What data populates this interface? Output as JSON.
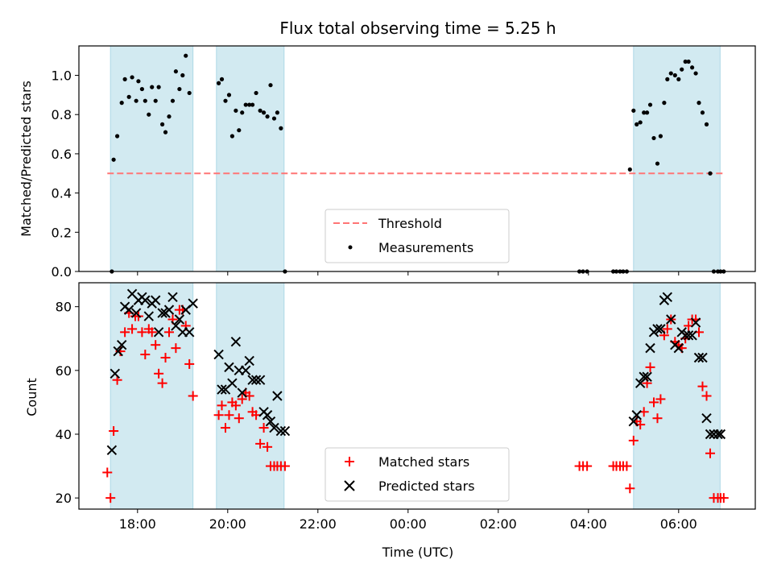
{
  "chart_data": [
    {
      "panel": "top",
      "type": "scatter",
      "title": "Flux total observing time = 5.25 h",
      "ylabel": "Matched/Predicted stars",
      "xlabel": "",
      "ylim": [
        0,
        1.15
      ],
      "yticks": [
        "0.0",
        "0.2",
        "0.4",
        "0.6",
        "0.8",
        "1.0"
      ],
      "threshold": 0.5,
      "legend": {
        "placement": "lower center",
        "entries": [
          "Threshold",
          "Measurements"
        ]
      },
      "colors": {
        "threshold": "#ff7575",
        "measurements": "#000000",
        "shade": "#add8e6"
      },
      "series": [
        {
          "name": "Measurements",
          "x": [
            17.43,
            17.47,
            17.55,
            17.65,
            17.72,
            17.81,
            17.88,
            17.97,
            18.02,
            18.1,
            18.17,
            18.25,
            18.32,
            18.4,
            18.47,
            18.55,
            18.62,
            18.7,
            18.78,
            18.85,
            18.93,
            19.0,
            19.07,
            19.15,
            19.8,
            19.87,
            19.95,
            20.03,
            20.1,
            20.18,
            20.25,
            20.32,
            20.4,
            20.48,
            20.55,
            20.63,
            20.72,
            20.8,
            20.88,
            20.95,
            21.03,
            21.1,
            21.18,
            21.27,
            27.8,
            27.88,
            27.97,
            28.55,
            28.62,
            28.7,
            28.77,
            28.85,
            28.92,
            29.0,
            29.07,
            29.15,
            29.23,
            29.3,
            29.37,
            29.45,
            29.53,
            29.6,
            29.68,
            29.75,
            29.83,
            29.92,
            30.0,
            30.07,
            30.15,
            30.22,
            30.3,
            30.38,
            30.45,
            30.53,
            30.62,
            30.7,
            30.78,
            30.87,
            30.93,
            31.0
          ],
          "y": [
            0.0,
            0.57,
            0.69,
            0.86,
            0.98,
            0.89,
            0.99,
            0.87,
            0.97,
            0.93,
            0.87,
            0.8,
            0.94,
            0.87,
            0.94,
            0.75,
            0.71,
            0.79,
            0.87,
            1.02,
            0.93,
            1.0,
            1.1,
            0.91,
            0.96,
            0.98,
            0.87,
            0.9,
            0.69,
            0.82,
            0.72,
            0.81,
            0.85,
            0.85,
            0.85,
            0.91,
            0.82,
            0.81,
            0.79,
            0.95,
            0.78,
            0.81,
            0.73,
            0.0,
            0.0,
            0.0,
            0.0,
            0.0,
            0.0,
            0.0,
            0.0,
            0.0,
            0.52,
            0.82,
            0.75,
            0.76,
            0.81,
            0.81,
            0.85,
            0.68,
            0.55,
            0.69,
            0.86,
            0.98,
            1.01,
            1.0,
            0.98,
            1.03,
            1.07,
            1.07,
            1.04,
            1.01,
            0.86,
            0.81,
            0.75,
            0.5,
            0.0,
            0.0,
            0.0,
            0.0
          ]
        }
      ]
    },
    {
      "panel": "bottom",
      "type": "scatter",
      "title": "",
      "ylabel": "Count",
      "xlabel": "Time (UTC)",
      "ylim": [
        16.5,
        87.5
      ],
      "yticks": [
        "20",
        "40",
        "60",
        "80"
      ],
      "xticks": [
        "18:00",
        "20:00",
        "22:00",
        "00:00",
        "02:00",
        "04:00",
        "06:00"
      ],
      "xtick_values": [
        18,
        20,
        22,
        24,
        26,
        28,
        30
      ],
      "xlim": [
        16.7,
        31.7
      ],
      "legend": {
        "placement": "lower center",
        "entries": [
          "Matched stars",
          "Predicted stars"
        ]
      },
      "colors": {
        "matched": "#ff0000",
        "predicted": "#000000",
        "shade": "#add8e6"
      },
      "shaded_intervals": [
        [
          17.4,
          19.23
        ],
        [
          19.75,
          21.25
        ],
        [
          29.0,
          30.92
        ]
      ],
      "series": [
        {
          "name": "Matched stars",
          "marker": "+",
          "x": [
            17.33,
            17.4,
            17.47,
            17.55,
            17.62,
            17.72,
            17.81,
            17.88,
            17.95,
            18.02,
            18.1,
            18.17,
            18.25,
            18.32,
            18.4,
            18.47,
            18.55,
            18.62,
            18.7,
            18.78,
            18.85,
            18.93,
            19.0,
            19.07,
            19.15,
            19.23,
            19.8,
            19.87,
            19.95,
            20.03,
            20.1,
            20.18,
            20.25,
            20.32,
            20.4,
            20.48,
            20.55,
            20.63,
            20.72,
            20.8,
            20.88,
            20.95,
            21.03,
            21.1,
            21.18,
            21.27,
            27.8,
            27.88,
            27.97,
            28.55,
            28.62,
            28.7,
            28.77,
            28.85,
            28.92,
            29.0,
            29.07,
            29.15,
            29.23,
            29.3,
            29.37,
            29.45,
            29.53,
            29.6,
            29.68,
            29.75,
            29.83,
            29.92,
            30.0,
            30.07,
            30.15,
            30.22,
            30.3,
            30.38,
            30.45,
            30.53,
            30.62,
            30.7,
            30.78,
            30.87,
            30.93,
            31.0
          ],
          "y": [
            28,
            20,
            41,
            57,
            66,
            72,
            78,
            73,
            77,
            77,
            72,
            65,
            73,
            72,
            68,
            59,
            56,
            64,
            72,
            76,
            67,
            79,
            79,
            74,
            62,
            52,
            46,
            49,
            42,
            46,
            50,
            49,
            45,
            51,
            53,
            52,
            47,
            46,
            37,
            42,
            36,
            30,
            30,
            30,
            30,
            30,
            30,
            30,
            30,
            30,
            30,
            30,
            30,
            30,
            23,
            38,
            44,
            43,
            47,
            56,
            61,
            50,
            45,
            51,
            71,
            73,
            76,
            69,
            68,
            67,
            70,
            74,
            76,
            76,
            72,
            55,
            52,
            34,
            20,
            20,
            20,
            20
          ]
        },
        {
          "name": "Predicted stars",
          "marker": "x",
          "x": [
            17.43,
            17.5,
            17.57,
            17.65,
            17.72,
            17.81,
            17.88,
            17.97,
            18.02,
            18.1,
            18.17,
            18.25,
            18.32,
            18.4,
            18.47,
            18.55,
            18.62,
            18.7,
            18.78,
            18.85,
            18.93,
            19.0,
            19.07,
            19.15,
            19.23,
            19.8,
            19.87,
            19.95,
            20.03,
            20.1,
            20.18,
            20.25,
            20.32,
            20.4,
            20.48,
            20.55,
            20.63,
            20.72,
            20.8,
            20.88,
            20.95,
            21.03,
            21.1,
            21.18,
            21.27,
            29.0,
            29.07,
            29.15,
            29.23,
            29.3,
            29.37,
            29.45,
            29.53,
            29.6,
            29.68,
            29.75,
            29.83,
            29.92,
            30.0,
            30.07,
            30.15,
            30.22,
            30.3,
            30.38,
            30.45,
            30.53,
            30.62,
            30.7,
            30.78,
            30.87,
            30.93
          ],
          "y": [
            35,
            59,
            66,
            68,
            80,
            79,
            84,
            78,
            82,
            83,
            82,
            77,
            81,
            82,
            72,
            78,
            78,
            79,
            83,
            74,
            76,
            72,
            79,
            72,
            81,
            65,
            54,
            54,
            61,
            56,
            69,
            60,
            53,
            60,
            63,
            57,
            57,
            57,
            47,
            46,
            44,
            42,
            52,
            41,
            41,
            44,
            46,
            56,
            58,
            58,
            67,
            72,
            73,
            73,
            82,
            83,
            76,
            68,
            67,
            72,
            71,
            71,
            71,
            75,
            64,
            64,
            45,
            40,
            40,
            40,
            40
          ]
        }
      ]
    }
  ]
}
